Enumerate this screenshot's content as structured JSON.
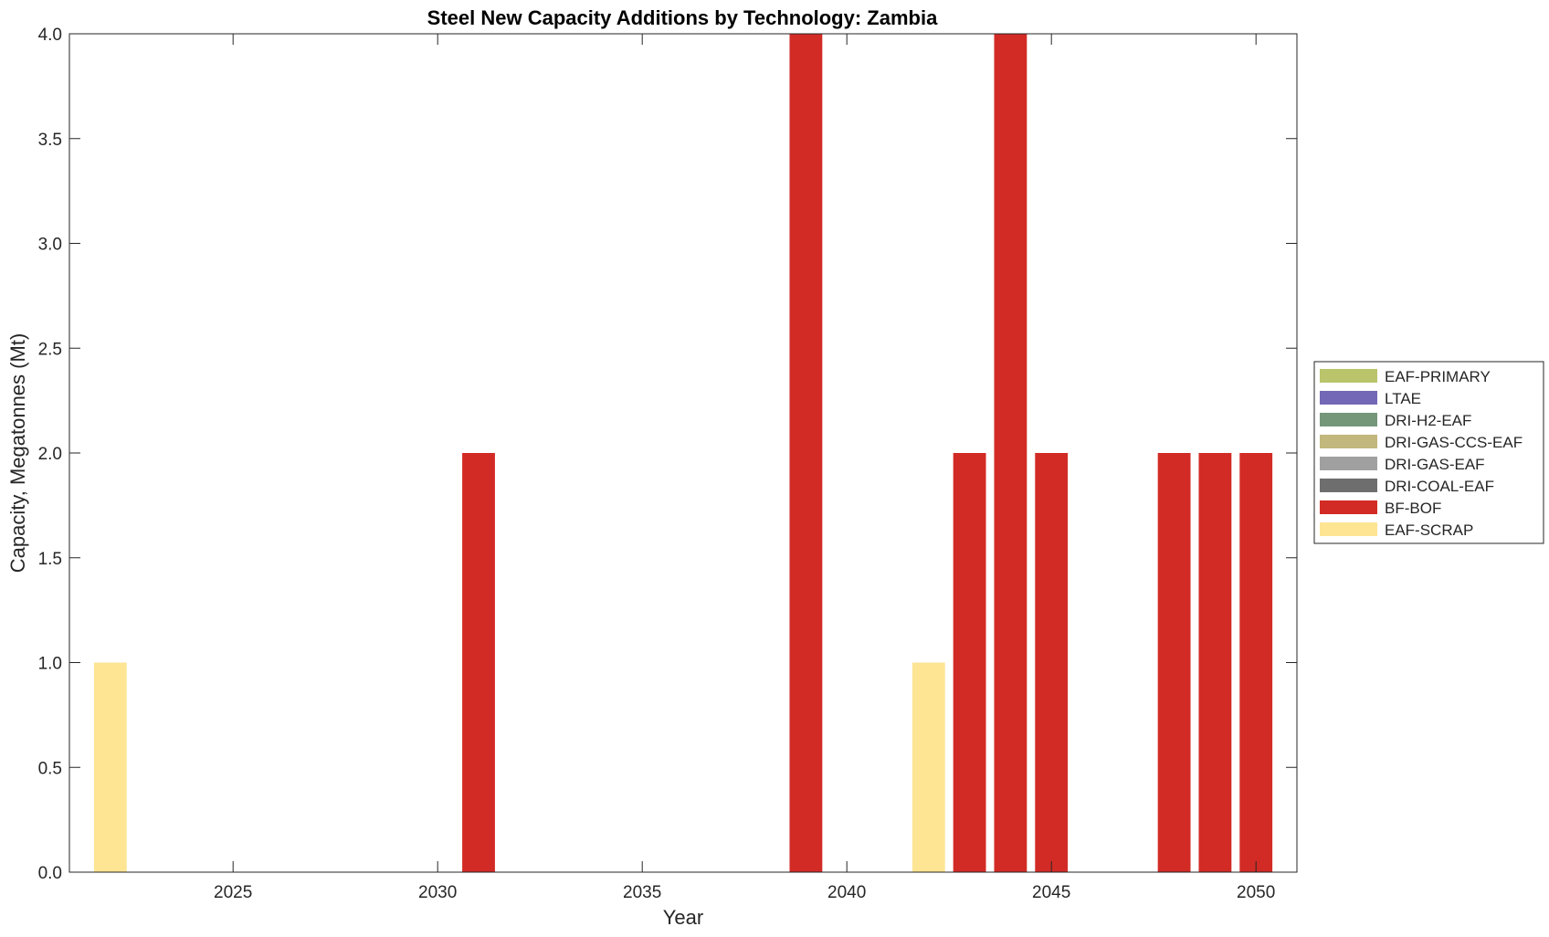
{
  "chart_data": {
    "type": "bar",
    "stacked": true,
    "title": "Steel New Capacity Additions by Technology: Zambia",
    "xlabel": "Year",
    "ylabel": "Capacity, Megatonnes (Mt)",
    "xlim": [
      2021,
      2051
    ],
    "ylim": [
      0,
      4
    ],
    "x_ticks": [
      2025,
      2030,
      2035,
      2040,
      2045,
      2050
    ],
    "x_tick_labels": [
      "2025",
      "2030",
      "2035",
      "2040",
      "2045",
      "2050"
    ],
    "y_ticks": [
      0,
      0.5,
      1,
      1.5,
      2,
      2.5,
      3,
      3.5,
      4
    ],
    "y_tick_labels": [
      "0.0",
      "0.5",
      "1.0",
      "1.5",
      "2.0",
      "2.5",
      "3.0",
      "3.5",
      "4.0"
    ],
    "grid": false,
    "legend_position": "right",
    "x": [
      2022,
      2023,
      2024,
      2025,
      2026,
      2027,
      2028,
      2029,
      2030,
      2031,
      2032,
      2033,
      2034,
      2035,
      2036,
      2037,
      2038,
      2039,
      2040,
      2041,
      2042,
      2043,
      2044,
      2045,
      2046,
      2047,
      2048,
      2049,
      2050
    ],
    "series": [
      {
        "name": "EAF-SCRAP",
        "color": "#FDE594",
        "values": [
          1,
          0,
          0,
          0,
          0,
          0,
          0,
          0,
          0,
          0,
          0,
          0,
          0,
          0,
          0,
          0,
          0,
          0,
          0,
          0,
          1,
          0,
          0,
          0,
          0,
          0,
          0,
          0,
          0
        ]
      },
      {
        "name": "BF-BOF",
        "color": "#D22B25",
        "values": [
          0,
          0,
          0,
          0,
          0,
          0,
          0,
          0,
          0,
          2,
          0,
          0,
          0,
          0,
          0,
          0,
          0,
          4,
          0,
          0,
          0,
          2,
          4,
          2,
          0,
          0,
          2,
          2,
          2
        ]
      },
      {
        "name": "DRI-COAL-EAF",
        "color": "#6E6E6E",
        "values": [
          0,
          0,
          0,
          0,
          0,
          0,
          0,
          0,
          0,
          0,
          0,
          0,
          0,
          0,
          0,
          0,
          0,
          0,
          0,
          0,
          0,
          0,
          0,
          0,
          0,
          0,
          0,
          0,
          0
        ]
      },
      {
        "name": "DRI-GAS-EAF",
        "color": "#A0A0A0",
        "values": [
          0,
          0,
          0,
          0,
          0,
          0,
          0,
          0,
          0,
          0,
          0,
          0,
          0,
          0,
          0,
          0,
          0,
          0,
          0,
          0,
          0,
          0,
          0,
          0,
          0,
          0,
          0,
          0,
          0
        ]
      },
      {
        "name": "DRI-GAS-CCS-EAF",
        "color": "#C2B77C",
        "values": [
          0,
          0,
          0,
          0,
          0,
          0,
          0,
          0,
          0,
          0,
          0,
          0,
          0,
          0,
          0,
          0,
          0,
          0,
          0,
          0,
          0,
          0,
          0,
          0,
          0,
          0,
          0,
          0,
          0
        ]
      },
      {
        "name": "DRI-H2-EAF",
        "color": "#74977A",
        "values": [
          0,
          0,
          0,
          0,
          0,
          0,
          0,
          0,
          0,
          0,
          0,
          0,
          0,
          0,
          0,
          0,
          0,
          0,
          0,
          0,
          0,
          0,
          0,
          0,
          0,
          0,
          0,
          0,
          0
        ]
      },
      {
        "name": "LTAE",
        "color": "#7268B5",
        "values": [
          0,
          0,
          0,
          0,
          0,
          0,
          0,
          0,
          0,
          0,
          0,
          0,
          0,
          0,
          0,
          0,
          0,
          0,
          0,
          0,
          0,
          0,
          0,
          0,
          0,
          0,
          0,
          0,
          0
        ]
      },
      {
        "name": "EAF-PRIMARY",
        "color": "#BAC46A",
        "values": [
          0,
          0,
          0,
          0,
          0,
          0,
          0,
          0,
          0,
          0,
          0,
          0,
          0,
          0,
          0,
          0,
          0,
          0,
          0,
          0,
          0,
          0,
          0,
          0,
          0,
          0,
          0,
          0,
          0
        ]
      }
    ],
    "legend_order": [
      "EAF-PRIMARY",
      "LTAE",
      "DRI-H2-EAF",
      "DRI-GAS-CCS-EAF",
      "DRI-GAS-EAF",
      "DRI-COAL-EAF",
      "BF-BOF",
      "EAF-SCRAP"
    ]
  }
}
